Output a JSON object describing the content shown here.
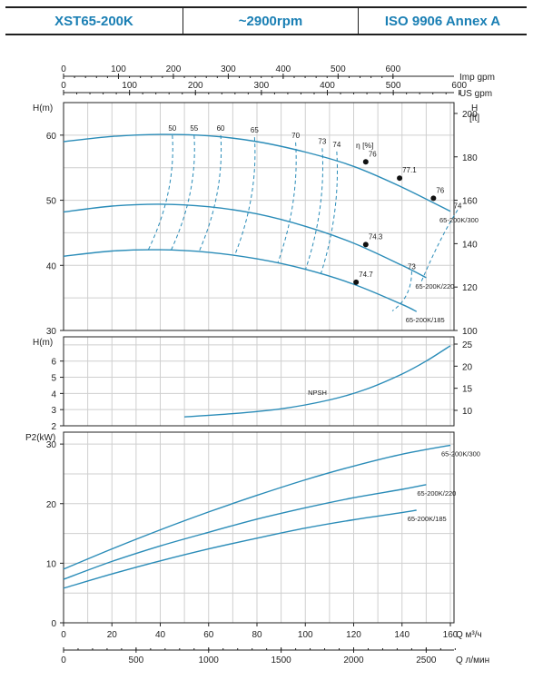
{
  "header": {
    "model": "XST65-200K",
    "speed": "~2900rpm",
    "standard": "ISO 9906   Annex A"
  },
  "colors": {
    "curve": "#2a8cb8",
    "grid": "#cfcfcf",
    "axis": "#222222",
    "header_text": "#1a7fb4"
  },
  "chart_data": [
    {
      "type": "line",
      "name": "head",
      "ylabel": "H(m)",
      "y2label": "H [ft]",
      "ylim": [
        30,
        65
      ],
      "y2lim": [
        100,
        205
      ],
      "yticks": [
        30,
        40,
        50,
        60
      ],
      "y2ticks": [
        100,
        120,
        140,
        160,
        180,
        200
      ],
      "xlim": [
        0,
        166
      ],
      "top_axes": [
        {
          "label": "Imp gpm",
          "ticks": [
            0,
            100,
            200,
            300,
            400,
            500,
            600
          ],
          "factor": 4.403
        },
        {
          "label": "US gpm",
          "ticks": [
            0,
            100,
            200,
            300,
            400,
            500,
            600,
            700
          ],
          "factor": 3.666
        }
      ],
      "efficiency_label": "η [%]",
      "series": [
        {
          "name": "65-200K/300",
          "x": [
            0,
            20,
            40,
            60,
            80,
            100,
            120,
            140,
            160
          ],
          "y": [
            59.0,
            59.8,
            60.1,
            59.9,
            59.0,
            57.4,
            55.2,
            52.0,
            48.3
          ]
        },
        {
          "name": "65-200K/220",
          "x": [
            0,
            20,
            40,
            60,
            80,
            100,
            120,
            140,
            150
          ],
          "y": [
            48.2,
            49.1,
            49.4,
            49.0,
            47.9,
            46.0,
            43.4,
            40.0,
            38.1
          ]
        },
        {
          "name": "65-200K/185",
          "x": [
            0,
            20,
            40,
            60,
            80,
            100,
            120,
            140,
            146
          ],
          "y": [
            41.4,
            42.2,
            42.4,
            42.0,
            41.0,
            39.4,
            37.1,
            34.0,
            32.9
          ]
        }
      ],
      "efficiency_points": [
        {
          "label": "76",
          "x": 125,
          "y": 55.9
        },
        {
          "label": "77.1",
          "x": 139,
          "y": 53.4
        },
        {
          "label": "76",
          "x": 153,
          "y": 50.3
        },
        {
          "label": "74.3",
          "x": 125,
          "y": 43.2
        },
        {
          "label": "74.7",
          "x": 121,
          "y": 37.4
        }
      ],
      "efficiency_labels": [
        {
          "label": "50",
          "x": 45,
          "y": 60.4
        },
        {
          "label": "55",
          "x": 54,
          "y": 60.4
        },
        {
          "label": "60",
          "x": 65,
          "y": 60.4
        },
        {
          "label": "65",
          "x": 79,
          "y": 60.1
        },
        {
          "label": "70",
          "x": 96,
          "y": 59.3
        },
        {
          "label": "73",
          "x": 107,
          "y": 58.4
        },
        {
          "label": "74",
          "x": 113,
          "y": 57.9
        },
        {
          "label": "74",
          "x": 163,
          "y": 48.5
        },
        {
          "label": "73",
          "x": 144,
          "y": 39.1
        }
      ]
    },
    {
      "type": "line",
      "name": "npsh",
      "ylabel": "H(m)",
      "ylim": [
        2,
        7.5
      ],
      "yticks": [
        2,
        3,
        4,
        5,
        6
      ],
      "y2ticks": [
        10,
        15,
        20,
        25
      ],
      "xlim": [
        0,
        166
      ],
      "series": [
        {
          "name": "NPSH",
          "x": [
            50,
            70,
            90,
            110,
            125,
            140,
            150,
            160
          ],
          "y": [
            2.55,
            2.75,
            3.05,
            3.6,
            4.25,
            5.2,
            6.0,
            6.95
          ]
        }
      ]
    },
    {
      "type": "line",
      "name": "power",
      "ylabel": "P2(kW)",
      "ylim": [
        0,
        32
      ],
      "yticks": [
        0,
        10,
        20,
        30
      ],
      "xlim": [
        0,
        166
      ],
      "xticks": [
        0,
        20,
        40,
        60,
        80,
        100,
        120,
        140,
        160
      ],
      "xlabel": "Q м³/ч",
      "x2label": "Q л/мин",
      "x2ticks": [
        0,
        500,
        1000,
        1500,
        2000,
        2500
      ],
      "series": [
        {
          "name": "65-200K/300",
          "x": [
            0,
            20,
            40,
            60,
            80,
            100,
            120,
            140,
            160
          ],
          "y": [
            9.0,
            12.4,
            15.6,
            18.6,
            21.4,
            24.0,
            26.3,
            28.3,
            29.8
          ]
        },
        {
          "name": "65-200K/220",
          "x": [
            0,
            20,
            40,
            60,
            80,
            100,
            120,
            140,
            150
          ],
          "y": [
            7.3,
            10.3,
            12.9,
            15.2,
            17.4,
            19.3,
            21.0,
            22.4,
            23.2
          ]
        },
        {
          "name": "65-200K/185",
          "x": [
            0,
            20,
            40,
            60,
            80,
            100,
            120,
            140,
            146
          ],
          "y": [
            5.8,
            8.2,
            10.4,
            12.4,
            14.2,
            15.9,
            17.3,
            18.5,
            18.9
          ]
        }
      ]
    }
  ]
}
